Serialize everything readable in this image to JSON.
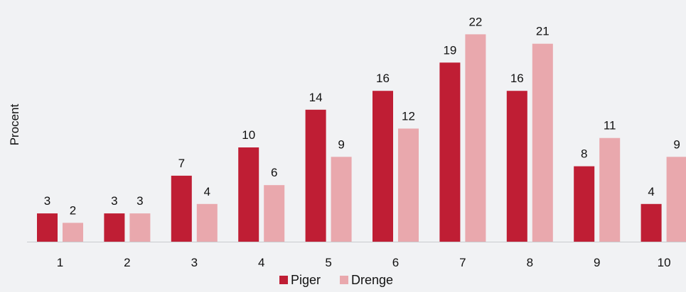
{
  "colors": {
    "background": "#f1f2f4",
    "axis": "#c9cbce",
    "text": "#111111"
  },
  "chart_data": {
    "type": "bar",
    "title": "",
    "xlabel": "",
    "ylabel": "Procent",
    "categories": [
      "1",
      "2",
      "3",
      "4",
      "5",
      "6",
      "7",
      "8",
      "9",
      "10"
    ],
    "series": [
      {
        "name": "Piger",
        "color": "#bf1e34",
        "values": [
          3,
          3,
          7,
          10,
          14,
          16,
          19,
          16,
          8,
          4
        ]
      },
      {
        "name": "Drenge",
        "color": "#e9a8ad",
        "values": [
          2,
          3,
          4,
          6,
          9,
          12,
          22,
          21,
          11,
          9
        ]
      }
    ],
    "ylim": [
      0,
      22
    ],
    "data_labels": true,
    "grid": false,
    "legend": "bottom-center"
  }
}
